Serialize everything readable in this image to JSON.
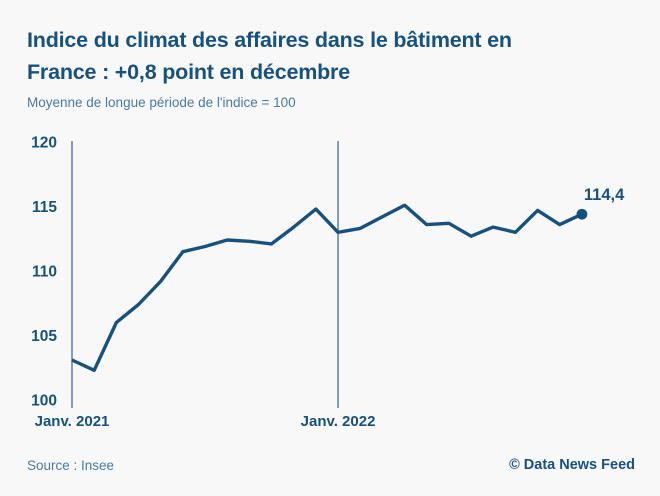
{
  "header": {
    "title_line1": "Indice du climat des affaires dans le bâtiment en",
    "title_line2": "France : +0,8 point en décembre",
    "subtitle": "Moyenne de longue période de l'indice = 100"
  },
  "footer": {
    "source": "Source : Insee",
    "credit": "© Data News Feed"
  },
  "colors": {
    "accent_dark": "#17517E",
    "accent_medium": "#4A7AA0",
    "guide_line": "#50789C",
    "background": "#F8F8F8"
  },
  "chart_data": {
    "type": "line",
    "title": "Indice du climat des affaires dans le bâtiment en France : +0,8 point en décembre",
    "subtitle": "Moyenne de longue période de l'indice = 100",
    "x": [
      "2021-01",
      "2021-02",
      "2021-03",
      "2021-04",
      "2021-05",
      "2021-06",
      "2021-07",
      "2021-08",
      "2021-09",
      "2021-10",
      "2021-11",
      "2021-12",
      "2022-01",
      "2022-02",
      "2022-03",
      "2022-04",
      "2022-05",
      "2022-06",
      "2022-07",
      "2022-08",
      "2022-09",
      "2022-10",
      "2022-11",
      "2022-12"
    ],
    "values": [
      103.1,
      102.3,
      106.0,
      107.4,
      109.2,
      111.5,
      111.9,
      112.4,
      112.3,
      112.1,
      113.4,
      114.8,
      113.0,
      113.3,
      114.2,
      115.1,
      113.6,
      113.7,
      112.7,
      113.4,
      113.0,
      114.7,
      113.6,
      114.4
    ],
    "ylim": [
      100,
      120
    ],
    "yticks": [
      120,
      115,
      110,
      105,
      100
    ],
    "xtick_labels": [
      "Janv. 2021",
      "Janv. 2022"
    ],
    "xtick_positions": [
      0,
      12
    ],
    "vertical_guides_at": [
      0,
      12
    ],
    "last_value_label": "114,4",
    "grid": "off",
    "legend": "none",
    "line_color": "#17517E",
    "marker": "filled dot on last point"
  }
}
